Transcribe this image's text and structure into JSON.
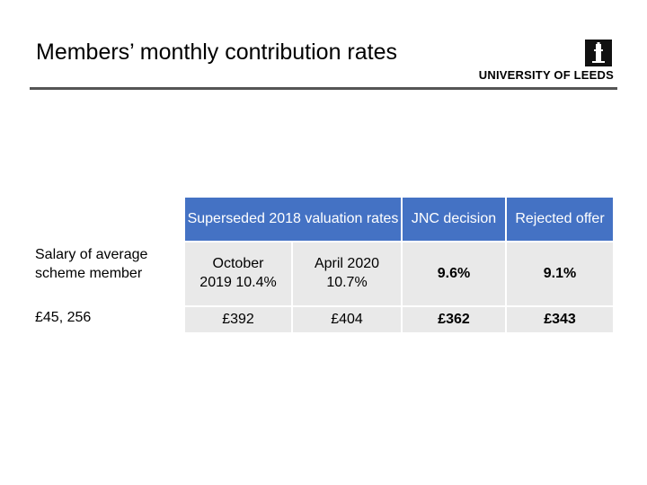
{
  "slide": {
    "title": "Members’ monthly contribution rates",
    "logo_text": "UNIVERSITY OF LEEDS"
  },
  "table": {
    "headers": {
      "superseded": "Superseded 2018 valuation rates",
      "jnc": "JNC decision",
      "rejected": "Rejected offer"
    },
    "rows": [
      {
        "label": "Salary of average scheme member",
        "october": "October 2019 10.4%",
        "april": "April 2020 10.7%",
        "jnc": "9.6%",
        "rejected": "9.1%"
      },
      {
        "label": "£45, 256",
        "october": "£392",
        "april": "£404",
        "jnc": "£362",
        "rejected": "£343"
      }
    ]
  },
  "colors": {
    "header_bg": "#4472c4",
    "cell_bg": "#e9e9e9",
    "rule": "#555555"
  }
}
